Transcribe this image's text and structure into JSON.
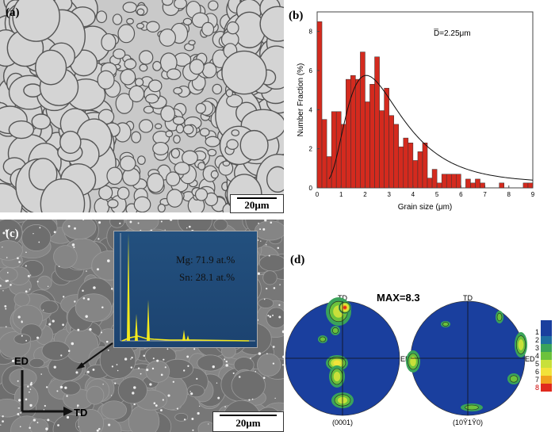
{
  "panels": {
    "a": {
      "label": "(a)",
      "scale_bar": "20μm"
    },
    "b": {
      "label": "(b)"
    },
    "c": {
      "label": "(c)",
      "scale_bar": "20μm",
      "eds": {
        "mg": "Mg: 71.9 at.%",
        "sn": "Sn: 28.1 at.%"
      },
      "axis_ed": "ED",
      "axis_td": "TD"
    },
    "d": {
      "label": "(d)",
      "max": "MAX=8.3",
      "pf1_label": "(0001)",
      "pf2_label": "(10Ŷ1Ŷ0)",
      "td": "TD",
      "ed": "ED",
      "colorbar": [
        "1",
        "2",
        "3",
        "4",
        "5",
        "6",
        "7",
        "8"
      ],
      "colors": [
        "#1a3f9e",
        "#1f6fa0",
        "#3aa35a",
        "#6cc23c",
        "#c8e03a",
        "#f2e23a",
        "#f0a21e",
        "#e02a1e"
      ]
    }
  },
  "chart_data": {
    "type": "bar",
    "annotation": "D̅=2.25μm",
    "xlabel": "Grain size (μm)",
    "ylabel": "Number Fraction (%)",
    "xlim": [
      0,
      9
    ],
    "ylim": [
      0,
      9
    ],
    "xticks": [
      "0",
      "1",
      "2",
      "3",
      "4",
      "5",
      "6",
      "7",
      "8",
      "9"
    ],
    "yticks": [
      "0",
      "2",
      "4",
      "6",
      "8"
    ],
    "bin_width": 0.2,
    "bar_color": "#d42a1e",
    "bin_starts": [
      0,
      0.2,
      0.4,
      0.6,
      0.8,
      1.0,
      1.2,
      1.4,
      1.6,
      1.8,
      2.0,
      2.2,
      2.4,
      2.6,
      2.8,
      3.0,
      3.2,
      3.4,
      3.6,
      3.8,
      4.0,
      4.2,
      4.4,
      4.6,
      4.8,
      5.0,
      5.2,
      5.4,
      5.6,
      5.8,
      6.0,
      6.2,
      6.4,
      6.6,
      6.8,
      7.0,
      7.2,
      7.4,
      7.6,
      7.8,
      8.0,
      8.2,
      8.4,
      8.6,
      8.8
    ],
    "values": [
      8.5,
      3.5,
      1.6,
      3.9,
      3.9,
      3.25,
      5.55,
      5.75,
      5.55,
      6.95,
      4.4,
      5.3,
      6.7,
      3.95,
      5.1,
      3.7,
      3.25,
      2.1,
      2.55,
      2.3,
      1.4,
      1.85,
      2.3,
      0.5,
      0.95,
      0.25,
      0.7,
      0.7,
      0.7,
      0.7,
      0,
      0.45,
      0.25,
      0.45,
      0.25,
      0,
      0,
      0,
      0.25,
      0,
      0,
      0,
      0,
      0.25,
      0.25
    ],
    "fit": {
      "type": "lognormal-like curve",
      "peak_x": 2.05,
      "peak_y": 5.75
    }
  }
}
